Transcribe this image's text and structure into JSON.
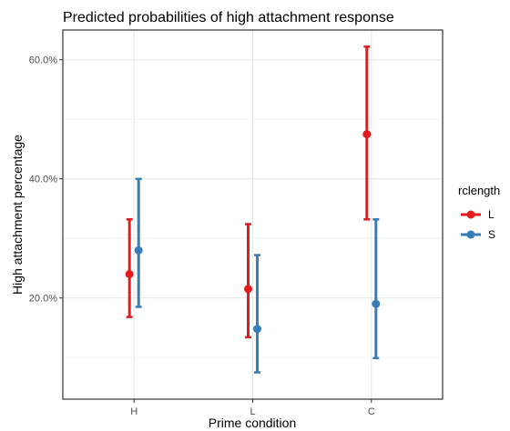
{
  "chart_data": {
    "type": "scatter",
    "title": "Predicted probabilities of high attachment response",
    "xlabel": "Prime condition",
    "ylabel": "High attachment percentage",
    "categories": [
      "H",
      "L",
      "C"
    ],
    "y_ticks": [
      20,
      40,
      60
    ],
    "y_tick_labels": [
      "20.0%",
      "40.0%",
      "60.0%"
    ],
    "ylim": [
      3,
      65
    ],
    "grid": true,
    "legend": {
      "title": "rclength",
      "position": "right"
    },
    "series": [
      {
        "name": "L",
        "color": "#e41a1c",
        "values": [
          24.0,
          21.5,
          47.5
        ],
        "lower": [
          16.8,
          13.4,
          33.2
        ],
        "upper": [
          33.2,
          32.4,
          62.2
        ]
      },
      {
        "name": "S",
        "color": "#377eb8",
        "values": [
          28.0,
          14.8,
          19.0
        ],
        "lower": [
          18.5,
          7.5,
          9.9
        ],
        "upper": [
          40.0,
          27.2,
          33.2
        ]
      }
    ]
  }
}
